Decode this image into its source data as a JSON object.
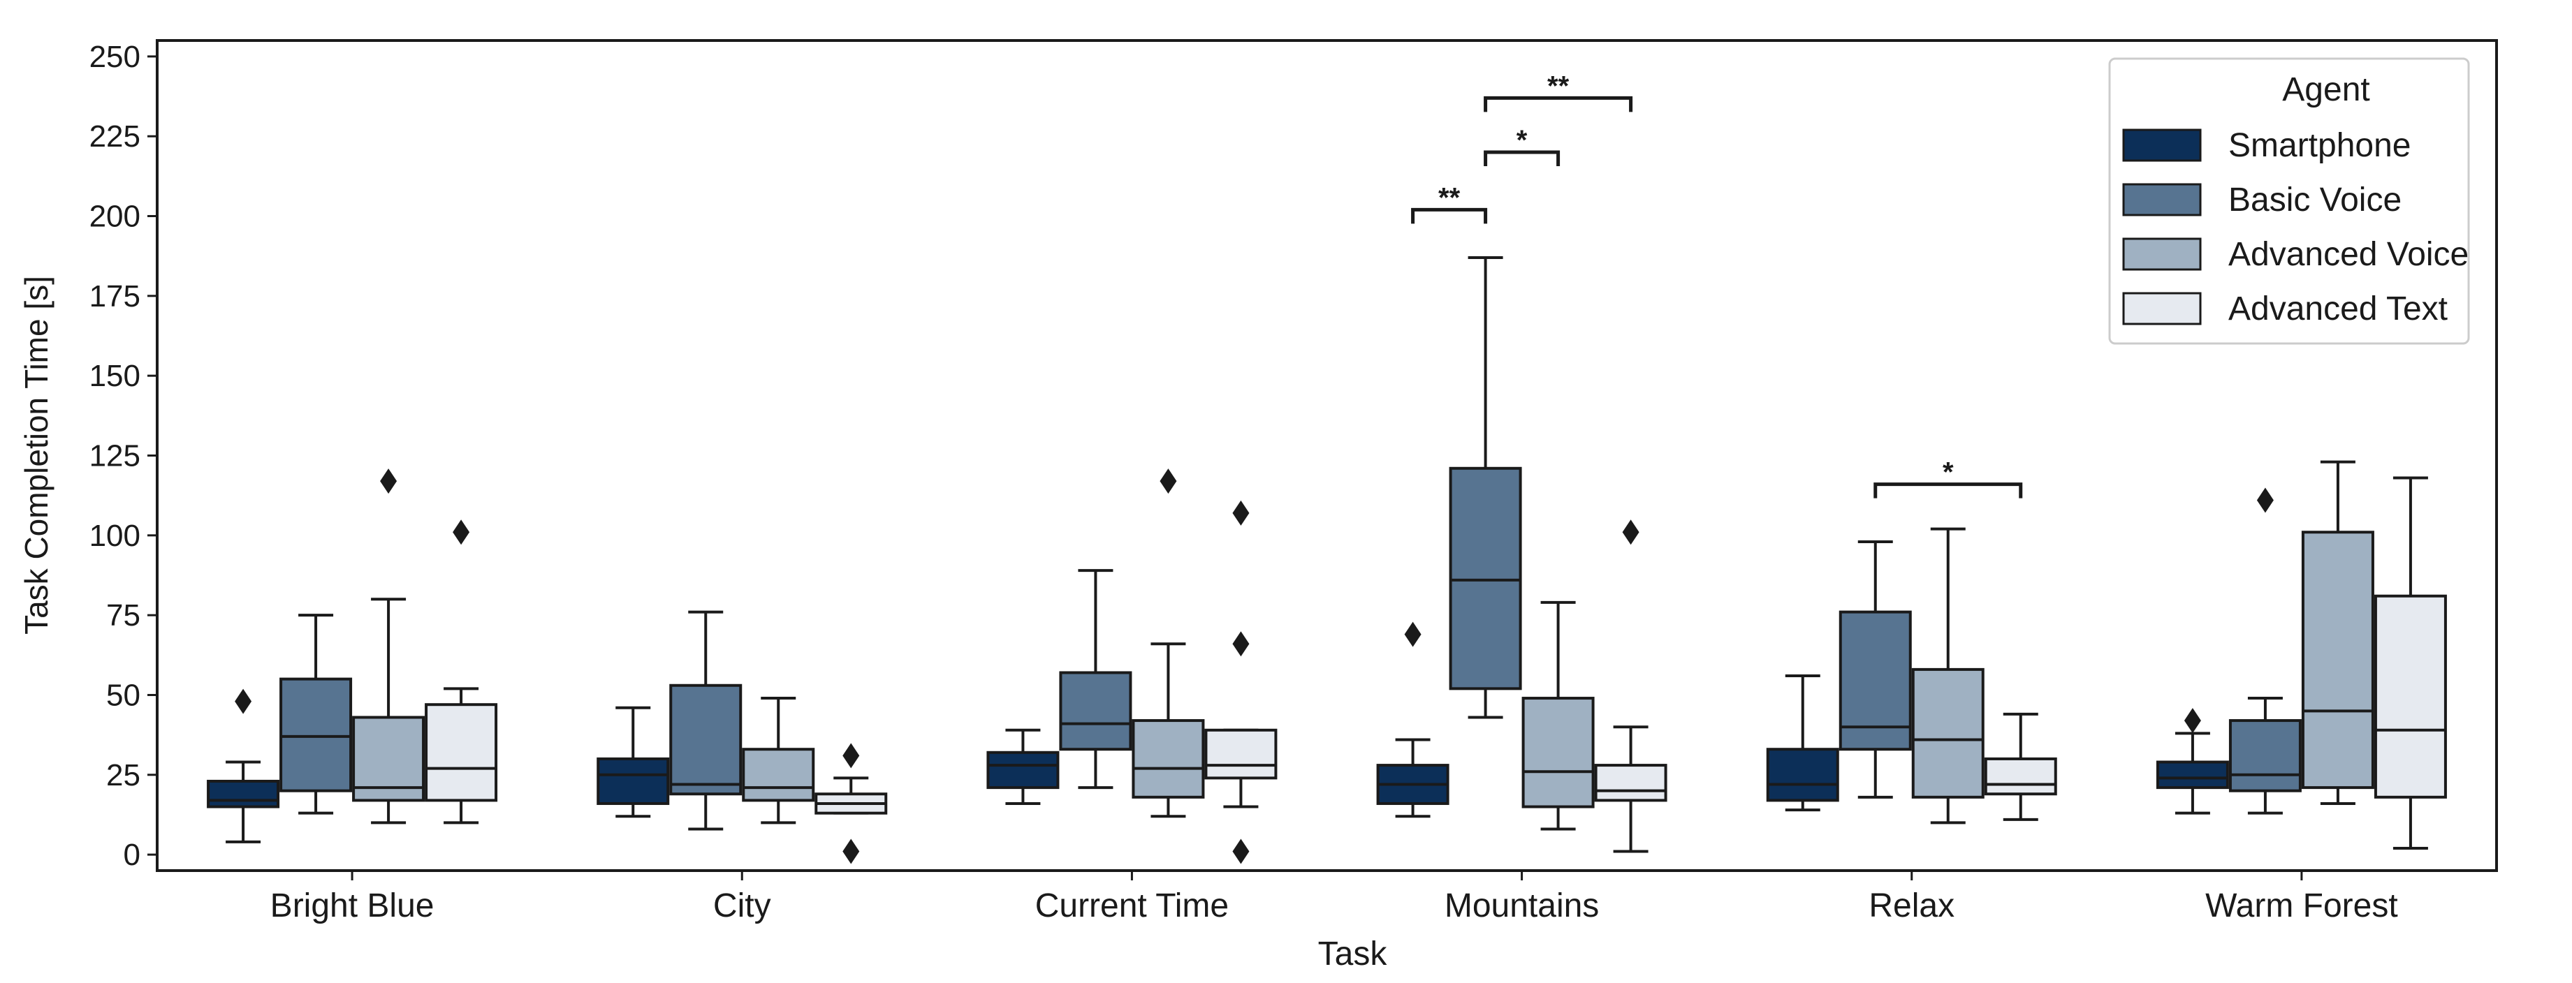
{
  "chart_data": {
    "type": "boxplot",
    "title": "",
    "xlabel": "Task",
    "ylabel": "Task Completion Time [s]",
    "ylim": [
      -5,
      255
    ],
    "yticks": [
      0,
      25,
      50,
      75,
      100,
      125,
      150,
      175,
      200,
      225,
      250
    ],
    "categories": [
      "Bright Blue",
      "City",
      "Current Time",
      "Mountains",
      "Relax",
      "Warm Forest"
    ],
    "legend": {
      "title": "Agent",
      "location": "top-right",
      "entries": [
        {
          "name": "Smartphone",
          "color": "#0c2f58"
        },
        {
          "name": "Basic Voice",
          "color": "#577491"
        },
        {
          "name": "Advanced Voice",
          "color": "#9fb1c2"
        },
        {
          "name": "Advanced Text",
          "color": "#e6eaf0"
        }
      ]
    },
    "series": [
      {
        "name": "Smartphone",
        "color": "#0c2f58",
        "boxes": [
          {
            "whislo": 4,
            "q1": 15,
            "med": 17,
            "q3": 23,
            "whishi": 29,
            "fliers": [
              48
            ]
          },
          {
            "whislo": 12,
            "q1": 16,
            "med": 25,
            "q3": 30,
            "whishi": 46,
            "fliers": []
          },
          {
            "whislo": 16,
            "q1": 21,
            "med": 28,
            "q3": 32,
            "whishi": 39,
            "fliers": []
          },
          {
            "whislo": 12,
            "q1": 16,
            "med": 22,
            "q3": 28,
            "whishi": 36,
            "fliers": [
              69
            ]
          },
          {
            "whislo": 14,
            "q1": 17,
            "med": 22,
            "q3": 33,
            "whishi": 56,
            "fliers": []
          },
          {
            "whislo": 13,
            "q1": 21,
            "med": 24,
            "q3": 29,
            "whishi": 38,
            "fliers": [
              42
            ]
          }
        ]
      },
      {
        "name": "Basic Voice",
        "color": "#577491",
        "boxes": [
          {
            "whislo": 13,
            "q1": 20,
            "med": 37,
            "q3": 55,
            "whishi": 75,
            "fliers": []
          },
          {
            "whislo": 8,
            "q1": 19,
            "med": 22,
            "q3": 53,
            "whishi": 76,
            "fliers": []
          },
          {
            "whislo": 21,
            "q1": 33,
            "med": 41,
            "q3": 57,
            "whishi": 89,
            "fliers": []
          },
          {
            "whislo": 43,
            "q1": 52,
            "med": 86,
            "q3": 121,
            "whishi": 187,
            "fliers": []
          },
          {
            "whislo": 18,
            "q1": 33,
            "med": 40,
            "q3": 76,
            "whishi": 98,
            "fliers": []
          },
          {
            "whislo": 13,
            "q1": 20,
            "med": 25,
            "q3": 42,
            "whishi": 49,
            "fliers": [
              111
            ]
          }
        ]
      },
      {
        "name": "Advanced Voice",
        "color": "#9fb1c2",
        "boxes": [
          {
            "whislo": 10,
            "q1": 17,
            "med": 21,
            "q3": 43,
            "whishi": 80,
            "fliers": [
              117
            ]
          },
          {
            "whislo": 10,
            "q1": 17,
            "med": 21,
            "q3": 33,
            "whishi": 49,
            "fliers": []
          },
          {
            "whislo": 12,
            "q1": 18,
            "med": 27,
            "q3": 42,
            "whishi": 66,
            "fliers": [
              117
            ]
          },
          {
            "whislo": 8,
            "q1": 15,
            "med": 26,
            "q3": 49,
            "whishi": 79,
            "fliers": []
          },
          {
            "whislo": 10,
            "q1": 18,
            "med": 36,
            "q3": 58,
            "whishi": 102,
            "fliers": []
          },
          {
            "whislo": 16,
            "q1": 21,
            "med": 45,
            "q3": 101,
            "whishi": 123,
            "fliers": []
          }
        ]
      },
      {
        "name": "Advanced Text",
        "color": "#e6eaf0",
        "boxes": [
          {
            "whislo": 10,
            "q1": 17,
            "med": 27,
            "q3": 47,
            "whishi": 52,
            "fliers": [
              101
            ]
          },
          {
            "whislo": 13,
            "q1": 13,
            "med": 16,
            "q3": 19,
            "whishi": 24,
            "fliers": [
              1,
              31
            ]
          },
          {
            "whislo": 15,
            "q1": 24,
            "med": 28,
            "q3": 39,
            "whishi": 39,
            "fliers": [
              1,
              66,
              107
            ]
          },
          {
            "whislo": 1,
            "q1": 17,
            "med": 20,
            "q3": 28,
            "whishi": 40,
            "fliers": [
              101
            ]
          },
          {
            "whislo": 11,
            "q1": 19,
            "med": 22,
            "q3": 30,
            "whishi": 44,
            "fliers": []
          },
          {
            "whislo": 2,
            "q1": 18,
            "med": 39,
            "q3": 81,
            "whishi": 118,
            "fliers": []
          }
        ]
      }
    ],
    "significance": [
      {
        "category": "Mountains",
        "from": "Smartphone",
        "to": "Basic Voice",
        "y": 202,
        "label": "**"
      },
      {
        "category": "Mountains",
        "from": "Basic Voice",
        "to": "Advanced Voice",
        "y": 220,
        "label": "*"
      },
      {
        "category": "Mountains",
        "from": "Basic Voice",
        "to": "Advanced Text",
        "y": 237,
        "label": "**"
      },
      {
        "category": "Relax",
        "from": "Basic Voice",
        "to": "Advanced Text",
        "y": 116,
        "label": "*"
      }
    ]
  }
}
